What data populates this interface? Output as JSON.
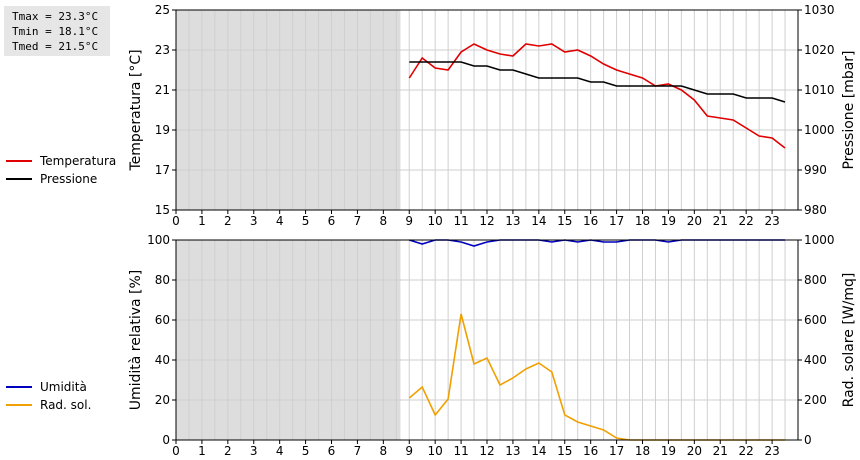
{
  "stats": {
    "tmax": "Tmax = 23.3°C",
    "tmin": "Tmin = 18.1°C",
    "tmed": "Tmed = 21.5°C"
  },
  "colors": {
    "temperature": "#e00000",
    "pressure": "#000000",
    "humidity": "#0000c0",
    "solar": "#f0a000",
    "shade": "#dddddd",
    "grid": "#cfcfcf"
  },
  "chart_data": [
    {
      "type": "line",
      "xlim": [
        0,
        24
      ],
      "x_ticks": [
        "0",
        "1",
        "2",
        "3",
        "4",
        "5",
        "6",
        "7",
        "8",
        "9",
        "10",
        "11",
        "12",
        "13",
        "14",
        "15",
        "16",
        "17",
        "18",
        "19",
        "20",
        "21",
        "22",
        "23"
      ],
      "shaded_range": [
        0,
        8.66
      ],
      "grid": true,
      "ylabel": "Temperatura [°C]",
      "y2label": "Pressione [mbar]",
      "ylim": [
        15,
        25
      ],
      "y2lim": [
        980,
        1030
      ],
      "y_ticks": [
        "15",
        "17",
        "19",
        "21",
        "23",
        "25"
      ],
      "y2_ticks": [
        "980",
        "990",
        "1000",
        "1010",
        "1020",
        "1030"
      ],
      "legend_position": "left",
      "series": [
        {
          "name": "Temperatura",
          "axis": "left",
          "x": [
            9.0,
            9.5,
            10.0,
            10.5,
            11.0,
            11.5,
            12.0,
            12.5,
            13.0,
            13.5,
            14.0,
            14.5,
            15.0,
            15.5,
            16.0,
            16.5,
            17.0,
            17.5,
            18.0,
            18.5,
            19.0,
            19.5,
            20.0,
            20.5,
            21.0,
            21.5,
            22.0,
            22.5,
            23.0,
            23.5
          ],
          "values": [
            21.6,
            22.6,
            22.1,
            22.0,
            22.9,
            23.3,
            23.0,
            22.8,
            22.7,
            23.3,
            23.2,
            23.3,
            22.9,
            23.0,
            22.7,
            22.3,
            22.0,
            21.8,
            21.6,
            21.2,
            21.3,
            21.0,
            20.5,
            19.7,
            19.6,
            19.5,
            19.1,
            18.7,
            18.6,
            18.1
          ]
        },
        {
          "name": "Pressione",
          "axis": "right",
          "x": [
            9.0,
            9.5,
            10.0,
            10.5,
            11.0,
            11.5,
            12.0,
            12.5,
            13.0,
            13.5,
            14.0,
            14.5,
            15.0,
            15.5,
            16.0,
            16.5,
            17.0,
            17.5,
            18.0,
            18.5,
            19.0,
            19.5,
            20.0,
            20.5,
            21.0,
            21.5,
            22.0,
            22.5,
            23.0,
            23.5
          ],
          "values": [
            1017,
            1017,
            1017,
            1017,
            1017,
            1016,
            1016,
            1015,
            1015,
            1014,
            1013,
            1013,
            1013,
            1013,
            1012,
            1012,
            1011,
            1011,
            1011,
            1011,
            1011,
            1011,
            1010,
            1009,
            1009,
            1009,
            1008,
            1008,
            1008,
            1007
          ]
        }
      ]
    },
    {
      "type": "line",
      "xlim": [
        0,
        24
      ],
      "x_ticks": [
        "0",
        "1",
        "2",
        "3",
        "4",
        "5",
        "6",
        "7",
        "8",
        "9",
        "10",
        "11",
        "12",
        "13",
        "14",
        "15",
        "16",
        "17",
        "18",
        "19",
        "20",
        "21",
        "22",
        "23"
      ],
      "shaded_range": [
        0,
        8.66
      ],
      "grid": true,
      "ylabel": "Umidità relativa [%]",
      "y2label": "Rad. solare [W/mq]",
      "ylim": [
        0,
        100
      ],
      "y2lim": [
        0,
        1000
      ],
      "y_ticks": [
        "0",
        "20",
        "40",
        "60",
        "80",
        "100"
      ],
      "y2_ticks": [
        "0",
        "200",
        "400",
        "600",
        "800",
        "1000"
      ],
      "legend_position": "left",
      "series": [
        {
          "name": "Umidità",
          "axis": "left",
          "x": [
            9.0,
            9.5,
            10.0,
            10.5,
            11.0,
            11.5,
            12.0,
            12.5,
            13.0,
            13.5,
            14.0,
            14.5,
            15.0,
            15.5,
            16.0,
            16.5,
            17.0,
            17.5,
            18.0,
            18.5,
            19.0,
            19.5,
            20.0,
            20.5,
            21.0,
            21.5,
            22.0,
            22.5,
            23.0,
            23.5
          ],
          "values": [
            100,
            98,
            100,
            100,
            99,
            97,
            99,
            100,
            100,
            100,
            100,
            99,
            100,
            99,
            100,
            99,
            99,
            100,
            100,
            100,
            99,
            100,
            100,
            100,
            100,
            100,
            100,
            100,
            100,
            100
          ]
        },
        {
          "name": "Rad. sol.",
          "axis": "right",
          "x": [
            9.0,
            9.5,
            10.0,
            10.5,
            11.0,
            11.5,
            12.0,
            12.5,
            13.0,
            13.5,
            14.0,
            14.5,
            15.0,
            15.5,
            16.0,
            16.5,
            17.0,
            17.5,
            18.0,
            18.5,
            19.0,
            19.5,
            20.0,
            20.5,
            21.0,
            21.5,
            22.0,
            22.5,
            23.0,
            23.5
          ],
          "values": [
            210,
            265,
            125,
            205,
            630,
            380,
            410,
            275,
            310,
            355,
            385,
            340,
            125,
            90,
            70,
            50,
            10,
            0,
            0,
            0,
            0,
            0,
            0,
            0,
            0,
            0,
            0,
            0,
            0,
            0
          ]
        }
      ]
    }
  ]
}
